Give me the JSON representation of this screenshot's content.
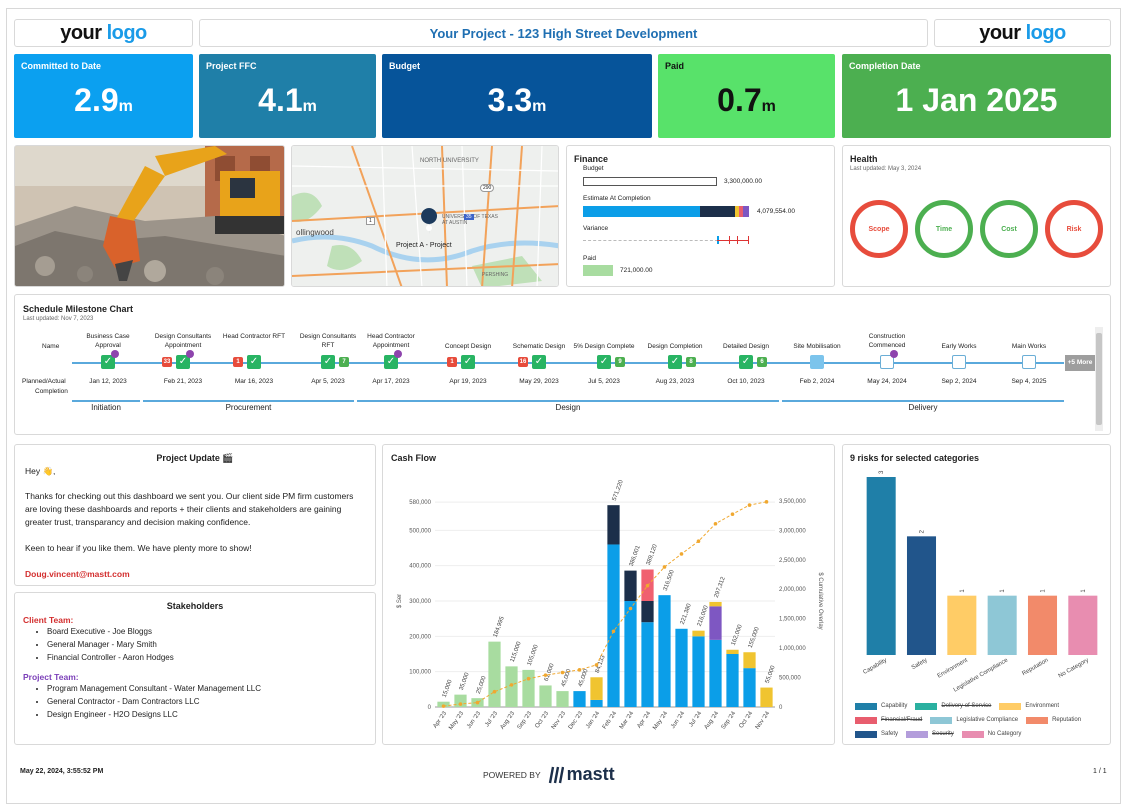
{
  "header": {
    "logo_left": {
      "your": "your",
      "logo": "logo"
    },
    "logo_right": {
      "your": "your",
      "logo": "logo"
    },
    "project_title": "Your Project - 123 High Street Development"
  },
  "kpis": [
    {
      "label": "Committed to Date",
      "value": "2.9",
      "unit": "m",
      "color": "#0ba0f0"
    },
    {
      "label": "Project FFC",
      "value": "4.1",
      "unit": "m",
      "color": "#1f7fa8"
    },
    {
      "label": "Budget",
      "value": "3.3",
      "unit": "m",
      "color": "#06549a"
    },
    {
      "label": "Paid",
      "value": "0.7",
      "unit": "m",
      "color": "#58e26a"
    },
    {
      "label": "Completion Date",
      "value": "1 Jan 2025",
      "unit": "",
      "color": "#4caf50"
    }
  ],
  "map": {
    "labels": [
      "NORTH UNIVERSITY",
      "UNIVERSITY OF TEXAS AT AUSTIN",
      "ollingwood",
      "Project A - Project",
      "PERSHING"
    ],
    "road_numbers": [
      "290",
      "1",
      "35",
      "2"
    ]
  },
  "finance": {
    "title": "Finance",
    "budget_label": "Budget",
    "budget_value": "3,300,000.00",
    "eac_label": "Estimate At Completion",
    "eac_value": "4,079,554.00",
    "variance_label": "Variance",
    "paid_label": "Paid",
    "paid_value": "721,000.00"
  },
  "health": {
    "title": "Health",
    "updated": "Last updated: May 3, 2024",
    "items": [
      {
        "label": "Scope",
        "color": "#e74c3c"
      },
      {
        "label": "Time",
        "color": "#4caf50"
      },
      {
        "label": "Cost",
        "color": "#4caf50"
      },
      {
        "label": "Risk",
        "color": "#e74c3c"
      }
    ]
  },
  "schedule": {
    "title": "Schedule Milestone Chart",
    "updated": "Last updated: Nov 7, 2023",
    "row_name": "Name",
    "row_planned": "Planned/Actual",
    "row_completion": "Completion",
    "more": "+5 More",
    "milestones": [
      {
        "name": "Business Case Approval",
        "date": "Jan 12, 2023",
        "badge": "",
        "badge_color": "",
        "purple": true,
        "type": "done"
      },
      {
        "name": "Design Consultants Appointment",
        "date": "Feb 21, 2023",
        "badge": "33",
        "badge_color": "#e74c3c",
        "purple": true,
        "type": "done"
      },
      {
        "name": "Head Contractor RFT",
        "date": "Mar 16, 2023",
        "badge": "1",
        "badge_color": "#e74c3c",
        "purple": false,
        "type": "done"
      },
      {
        "name": "Design Consultants RFT",
        "date": "Apr 5, 2023",
        "badge": "7",
        "badge_color": "#4caf50",
        "purple": false,
        "type": "done"
      },
      {
        "name": "Head Contractor Appointment",
        "date": "Apr 17, 2023",
        "badge": "",
        "badge_color": "",
        "purple": true,
        "type": "done"
      },
      {
        "name": "Concept Design",
        "date": "Apr 19, 2023",
        "badge": "1",
        "badge_color": "#e74c3c",
        "purple": false,
        "type": "done"
      },
      {
        "name": "Schematic Design",
        "date": "May 29, 2023",
        "badge": "16",
        "badge_color": "#e74c3c",
        "purple": false,
        "type": "done"
      },
      {
        "name": "5% Design Complete",
        "date": "Jul 5, 2023",
        "badge": "9",
        "badge_color": "#4caf50",
        "purple": false,
        "type": "done"
      },
      {
        "name": "Design Completion",
        "date": "Aug 23, 2023",
        "badge": "8",
        "badge_color": "#4caf50",
        "purple": false,
        "type": "done"
      },
      {
        "name": "Detailed Design",
        "date": "Oct 10, 2023",
        "badge": "6",
        "badge_color": "#4caf50",
        "purple": false,
        "type": "done"
      },
      {
        "name": "Site Mobilisation",
        "date": "Feb 2, 2024",
        "badge": "",
        "badge_color": "",
        "purple": false,
        "type": "solid-blue"
      },
      {
        "name": "Construction Commenced",
        "date": "May 24, 2024",
        "badge": "",
        "badge_color": "",
        "purple": true,
        "type": "hollow"
      },
      {
        "name": "Early Works",
        "date": "Sep 2, 2024",
        "badge": "",
        "badge_color": "",
        "purple": false,
        "type": "hollow"
      },
      {
        "name": "Main Works",
        "date": "Sep 4, 2025",
        "badge": "",
        "badge_color": "",
        "purple": false,
        "type": "hollow"
      }
    ],
    "phases": [
      "Initiation",
      "Procurement",
      "Design",
      "Delivery"
    ]
  },
  "update": {
    "title": "Project Update 🎬",
    "greeting": "Hey 👋,",
    "p1": "Thanks for checking out this dashboard we sent you. Our client side PM firm customers are loving these dashboards and reports + their clients and stakeholders are gaining greater trust, transparancy and decision making confidence.",
    "p2": "Keen to hear if you like them. We have plenty more to show!",
    "email": "Doug.vincent@mastt.com"
  },
  "stakeholders": {
    "title": "Stakeholders",
    "client_title": "Client Team",
    "client": [
      "Board Executive - Joe Bloggs",
      "General Manager - Mary Smith",
      "Financial Controller - Aaron Hodges"
    ],
    "project_title": "Project Team",
    "project": [
      "Program Management Consultant - Water Management LLC",
      "General Contractor - Dam Contractors LLC",
      "Design Engineer - H2O Designs LLC"
    ]
  },
  "cashflow_chart": {
    "title": "Cash Flow",
    "chart_data": {
      "type": "bar",
      "stacked": true,
      "categories": [
        "Apr '23",
        "May '23",
        "Jun '23",
        "Jul '23",
        "Aug '23",
        "Sep '23",
        "Oct '23",
        "Nov '23",
        "Dec '23",
        "Jan '24",
        "Feb '24",
        "Mar '24",
        "Apr '24",
        "May '24",
        "Jun '24",
        "Jul '24",
        "Aug '24",
        "Sep '24",
        "Oct '24",
        "Nov '24"
      ],
      "top_labels": [
        "15,000",
        "35,000",
        "25,000",
        "184,995",
        "115,000",
        "105,000",
        "61,000",
        "45,000",
        "45,000",
        "84,133",
        "571,220",
        "386,001",
        "389,120",
        "316,500",
        "221,380",
        "216,000",
        "297,312",
        "162,000",
        "155,000",
        "55,000"
      ],
      "series": [
        {
          "name": "Paid",
          "color": "#a8dca0",
          "values": [
            15000,
            35000,
            25000,
            184995,
            115000,
            105000,
            61000,
            45000,
            0,
            0,
            0,
            0,
            0,
            0,
            0,
            0,
            0,
            0,
            0,
            0
          ]
        },
        {
          "name": "Forecast",
          "color": "#0b9ee8",
          "values": [
            0,
            0,
            0,
            0,
            0,
            0,
            0,
            0,
            45000,
            20000,
            460000,
            300000,
            240000,
            316500,
            221380,
            200000,
            190000,
            150000,
            110000,
            0
          ]
        },
        {
          "name": "Committed",
          "color": "#1c2f4a",
          "values": [
            0,
            0,
            0,
            0,
            0,
            0,
            0,
            0,
            0,
            0,
            111220,
            86001,
            60000,
            0,
            0,
            0,
            0,
            0,
            0,
            0
          ]
        },
        {
          "name": "Risk",
          "color": "#f06070",
          "values": [
            0,
            0,
            0,
            0,
            0,
            0,
            0,
            0,
            0,
            0,
            0,
            0,
            89120,
            0,
            0,
            0,
            0,
            0,
            0,
            0
          ]
        },
        {
          "name": "Pending",
          "color": "#7e57c2",
          "values": [
            0,
            0,
            0,
            0,
            0,
            0,
            0,
            0,
            0,
            0,
            0,
            0,
            0,
            0,
            0,
            0,
            95000,
            0,
            0,
            0
          ]
        },
        {
          "name": "Uncommitted",
          "color": "#f0c430",
          "values": [
            0,
            0,
            0,
            0,
            0,
            0,
            0,
            0,
            0,
            64133,
            0,
            0,
            0,
            0,
            0,
            16000,
            12312,
            12000,
            45000,
            55000
          ]
        }
      ],
      "cumulative": [
        15000,
        50000,
        75000,
        260000,
        375000,
        480000,
        541000,
        586000,
        631000,
        715000,
        1286000,
        1672000,
        2061000,
        2378000,
        2599000,
        2815000,
        3112000,
        3274000,
        3429000,
        3484000
      ],
      "ylabel": "$ Ser",
      "y2label": "$ Cumulative Overlay",
      "ylim": [
        0,
        600000
      ],
      "y2lim": [
        0,
        3600000
      ],
      "yticks": [
        "0",
        "100,000",
        "200,000",
        "300,000",
        "400,000",
        "500,000",
        "580,000"
      ],
      "y2ticks": [
        "0",
        "500,000",
        "1,000,000",
        "1,500,000",
        "2,000,000",
        "2,500,000",
        "3,000,000",
        "3,500,000"
      ]
    }
  },
  "risks_chart": {
    "title": "9 risks for selected categories",
    "chart_data": {
      "type": "bar",
      "categories": [
        "Capability",
        "Safety",
        "Environment",
        "Legislative Compliance",
        "Reputation",
        "No Category"
      ],
      "values": [
        3,
        2,
        1,
        1,
        1,
        1
      ],
      "colors": [
        "#1f7fa8",
        "#21558b",
        "#ffcc66",
        "#8ec7d6",
        "#f28a6a",
        "#e88db0"
      ],
      "ylim": [
        0,
        3
      ]
    },
    "legend": [
      {
        "label": "Capability",
        "color": "#1f7fa8",
        "strike": false
      },
      {
        "label": "Delivery of Service",
        "color": "#2ab0a0",
        "strike": true
      },
      {
        "label": "Environment",
        "color": "#ffcc66",
        "strike": false
      },
      {
        "label": "Financial/Fraud",
        "color": "#e85d6e",
        "strike": true
      },
      {
        "label": "Legislative Compliance",
        "color": "#8ec7d6",
        "strike": false
      },
      {
        "label": "Reputation",
        "color": "#f28a6a",
        "strike": false
      },
      {
        "label": "Safety",
        "color": "#21558b",
        "strike": false
      },
      {
        "label": "Security",
        "color": "#b39ddb",
        "strike": true
      },
      {
        "label": "No Category",
        "color": "#e88db0",
        "strike": false
      }
    ]
  },
  "footer": {
    "timestamp": "May 22, 2024, 3:55:52 PM",
    "powered_by": "POWERED BY",
    "brand": "mastt",
    "page": "1 / 1"
  }
}
